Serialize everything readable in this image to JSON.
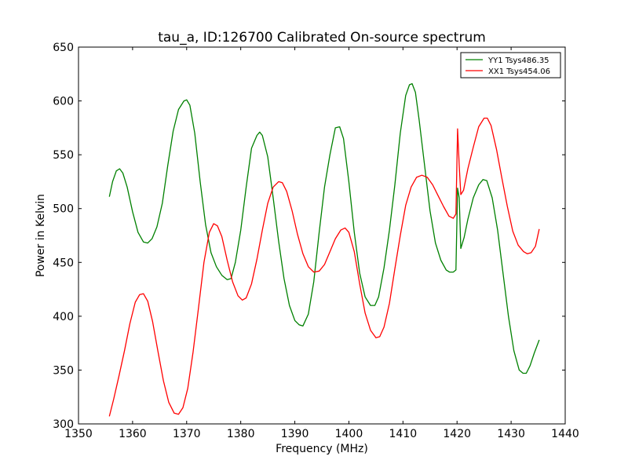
{
  "chart_data": {
    "type": "line",
    "title": "tau_a, ID:126700 Calibrated On-source spectrum",
    "xlabel": "Frequency (MHz)",
    "ylabel": "Power in Kelvin",
    "xlim": [
      1350,
      1440
    ],
    "ylim": [
      300,
      650
    ],
    "xticks": [
      1350,
      1360,
      1370,
      1380,
      1390,
      1400,
      1410,
      1420,
      1430,
      1440
    ],
    "yticks": [
      300,
      350,
      400,
      450,
      500,
      550,
      600,
      650
    ],
    "grid": false,
    "legend_position": "top-right",
    "series": [
      {
        "name": "YY1 Tsys486.35",
        "color": "#008000",
        "points": [
          [
            1355.7,
            511
          ],
          [
            1356.3,
            525
          ],
          [
            1357.0,
            535
          ],
          [
            1357.6,
            537
          ],
          [
            1358.2,
            533
          ],
          [
            1359.0,
            520
          ],
          [
            1360.0,
            497
          ],
          [
            1361.0,
            478
          ],
          [
            1362.0,
            469
          ],
          [
            1362.8,
            468
          ],
          [
            1363.6,
            472
          ],
          [
            1364.5,
            483
          ],
          [
            1365.5,
            505
          ],
          [
            1366.5,
            540
          ],
          [
            1367.5,
            572
          ],
          [
            1368.5,
            592
          ],
          [
            1369.5,
            600
          ],
          [
            1370.0,
            601
          ],
          [
            1370.6,
            596
          ],
          [
            1371.5,
            570
          ],
          [
            1372.5,
            525
          ],
          [
            1373.5,
            485
          ],
          [
            1374.5,
            459
          ],
          [
            1375.5,
            446
          ],
          [
            1376.5,
            438
          ],
          [
            1377.5,
            434
          ],
          [
            1378.2,
            435
          ],
          [
            1379.0,
            450
          ],
          [
            1380.0,
            480
          ],
          [
            1381.0,
            520
          ],
          [
            1382.0,
            556
          ],
          [
            1383.0,
            568
          ],
          [
            1383.5,
            571
          ],
          [
            1384.0,
            568
          ],
          [
            1385.0,
            548
          ],
          [
            1386.0,
            510
          ],
          [
            1387.0,
            470
          ],
          [
            1388.0,
            435
          ],
          [
            1389.0,
            410
          ],
          [
            1390.0,
            396
          ],
          [
            1390.8,
            392
          ],
          [
            1391.5,
            391
          ],
          [
            1392.5,
            402
          ],
          [
            1393.5,
            432
          ],
          [
            1394.5,
            478
          ],
          [
            1395.5,
            520
          ],
          [
            1396.5,
            550
          ],
          [
            1397.5,
            575
          ],
          [
            1398.3,
            576
          ],
          [
            1399.0,
            565
          ],
          [
            1400.0,
            525
          ],
          [
            1401.0,
            478
          ],
          [
            1402.0,
            440
          ],
          [
            1403.0,
            418
          ],
          [
            1404.0,
            410
          ],
          [
            1404.8,
            410
          ],
          [
            1405.5,
            418
          ],
          [
            1406.5,
            445
          ],
          [
            1407.5,
            480
          ],
          [
            1408.5,
            522
          ],
          [
            1409.5,
            570
          ],
          [
            1410.5,
            605
          ],
          [
            1411.2,
            615
          ],
          [
            1411.7,
            616
          ],
          [
            1412.3,
            608
          ],
          [
            1413.0,
            582
          ],
          [
            1414.0,
            540
          ],
          [
            1415.0,
            498
          ],
          [
            1416.0,
            468
          ],
          [
            1417.0,
            452
          ],
          [
            1418.0,
            443
          ],
          [
            1418.6,
            441
          ],
          [
            1419.3,
            441
          ],
          [
            1419.8,
            443
          ],
          [
            1420.1,
            519
          ],
          [
            1420.4,
            510
          ],
          [
            1420.7,
            463
          ],
          [
            1421.3,
            473
          ],
          [
            1422.0,
            490
          ],
          [
            1423.0,
            510
          ],
          [
            1424.0,
            522
          ],
          [
            1424.8,
            527
          ],
          [
            1425.5,
            526
          ],
          [
            1426.5,
            510
          ],
          [
            1427.5,
            480
          ],
          [
            1428.5,
            440
          ],
          [
            1429.5,
            400
          ],
          [
            1430.5,
            368
          ],
          [
            1431.5,
            350
          ],
          [
            1432.2,
            347
          ],
          [
            1432.8,
            347
          ],
          [
            1433.5,
            354
          ],
          [
            1434.3,
            366
          ],
          [
            1435.2,
            378
          ]
        ]
      },
      {
        "name": "XX1 Tsys454.06",
        "color": "#ff0000",
        "points": [
          [
            1355.7,
            307
          ],
          [
            1356.5,
            323
          ],
          [
            1357.5,
            345
          ],
          [
            1358.5,
            368
          ],
          [
            1359.5,
            393
          ],
          [
            1360.5,
            413
          ],
          [
            1361.3,
            420
          ],
          [
            1362.0,
            421
          ],
          [
            1362.8,
            414
          ],
          [
            1363.7,
            395
          ],
          [
            1364.7,
            367
          ],
          [
            1365.7,
            340
          ],
          [
            1366.7,
            320
          ],
          [
            1367.7,
            310
          ],
          [
            1368.5,
            309
          ],
          [
            1369.3,
            315
          ],
          [
            1370.2,
            333
          ],
          [
            1371.2,
            367
          ],
          [
            1372.2,
            408
          ],
          [
            1373.2,
            450
          ],
          [
            1374.2,
            478
          ],
          [
            1375.0,
            486
          ],
          [
            1375.7,
            484
          ],
          [
            1376.5,
            474
          ],
          [
            1377.5,
            452
          ],
          [
            1378.5,
            432
          ],
          [
            1379.5,
            419
          ],
          [
            1380.3,
            415
          ],
          [
            1381.0,
            417
          ],
          [
            1382.0,
            430
          ],
          [
            1383.0,
            453
          ],
          [
            1384.0,
            480
          ],
          [
            1385.0,
            505
          ],
          [
            1386.0,
            520
          ],
          [
            1387.0,
            525
          ],
          [
            1387.7,
            524
          ],
          [
            1388.5,
            516
          ],
          [
            1389.5,
            498
          ],
          [
            1390.5,
            476
          ],
          [
            1391.5,
            458
          ],
          [
            1392.5,
            446
          ],
          [
            1393.5,
            441
          ],
          [
            1394.5,
            442
          ],
          [
            1395.5,
            448
          ],
          [
            1396.5,
            460
          ],
          [
            1397.5,
            472
          ],
          [
            1398.5,
            480
          ],
          [
            1399.3,
            482
          ],
          [
            1400.0,
            478
          ],
          [
            1401.0,
            460
          ],
          [
            1402.0,
            430
          ],
          [
            1403.0,
            403
          ],
          [
            1404.0,
            387
          ],
          [
            1405.0,
            380
          ],
          [
            1405.7,
            381
          ],
          [
            1406.5,
            390
          ],
          [
            1407.5,
            412
          ],
          [
            1408.5,
            444
          ],
          [
            1409.5,
            475
          ],
          [
            1410.5,
            503
          ],
          [
            1411.5,
            520
          ],
          [
            1412.5,
            529
          ],
          [
            1413.5,
            531
          ],
          [
            1414.5,
            529
          ],
          [
            1415.5,
            522
          ],
          [
            1416.5,
            512
          ],
          [
            1417.5,
            502
          ],
          [
            1418.5,
            493
          ],
          [
            1419.3,
            491
          ],
          [
            1419.8,
            495
          ],
          [
            1420.1,
            574
          ],
          [
            1420.4,
            540
          ],
          [
            1420.7,
            513
          ],
          [
            1421.2,
            517
          ],
          [
            1422.0,
            537
          ],
          [
            1423.0,
            557
          ],
          [
            1424.0,
            576
          ],
          [
            1425.0,
            584
          ],
          [
            1425.6,
            584
          ],
          [
            1426.3,
            577
          ],
          [
            1427.3,
            555
          ],
          [
            1428.3,
            528
          ],
          [
            1429.3,
            502
          ],
          [
            1430.3,
            479
          ],
          [
            1431.3,
            466
          ],
          [
            1432.3,
            460
          ],
          [
            1433.0,
            458
          ],
          [
            1433.7,
            459
          ],
          [
            1434.5,
            465
          ],
          [
            1435.2,
            481
          ]
        ]
      }
    ]
  }
}
